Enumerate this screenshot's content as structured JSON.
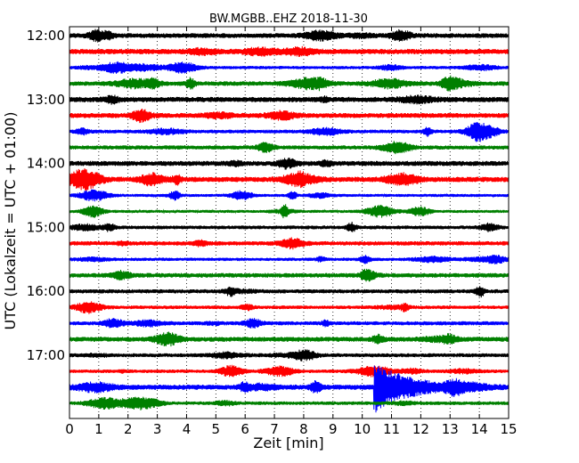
{
  "chart_data": {
    "type": "line",
    "title": "BW.MGBB..EHZ 2018-11-30",
    "xlabel": "Zeit  [min]",
    "ylabel": "UTC (Lokalzeit = UTC + 01:00)",
    "xlim": [
      0,
      15
    ],
    "x_ticks": [
      "0",
      "1",
      "2",
      "3",
      "4",
      "5",
      "6",
      "7",
      "8",
      "9",
      "10",
      "11",
      "12",
      "13",
      "14",
      "15"
    ],
    "y_ticks": [
      "12:00",
      "13:00",
      "14:00",
      "15:00",
      "16:00",
      "17:00"
    ],
    "row_start": "12:00",
    "row_interval_min": 15,
    "row_count": 24,
    "colors": [
      "#000000",
      "#ff0000",
      "#0000ff",
      "#008000"
    ],
    "grid": "vertical dotted",
    "events": [
      {
        "row_time": "17:30",
        "start_min": 10.4,
        "description": "large signal"
      }
    ]
  }
}
